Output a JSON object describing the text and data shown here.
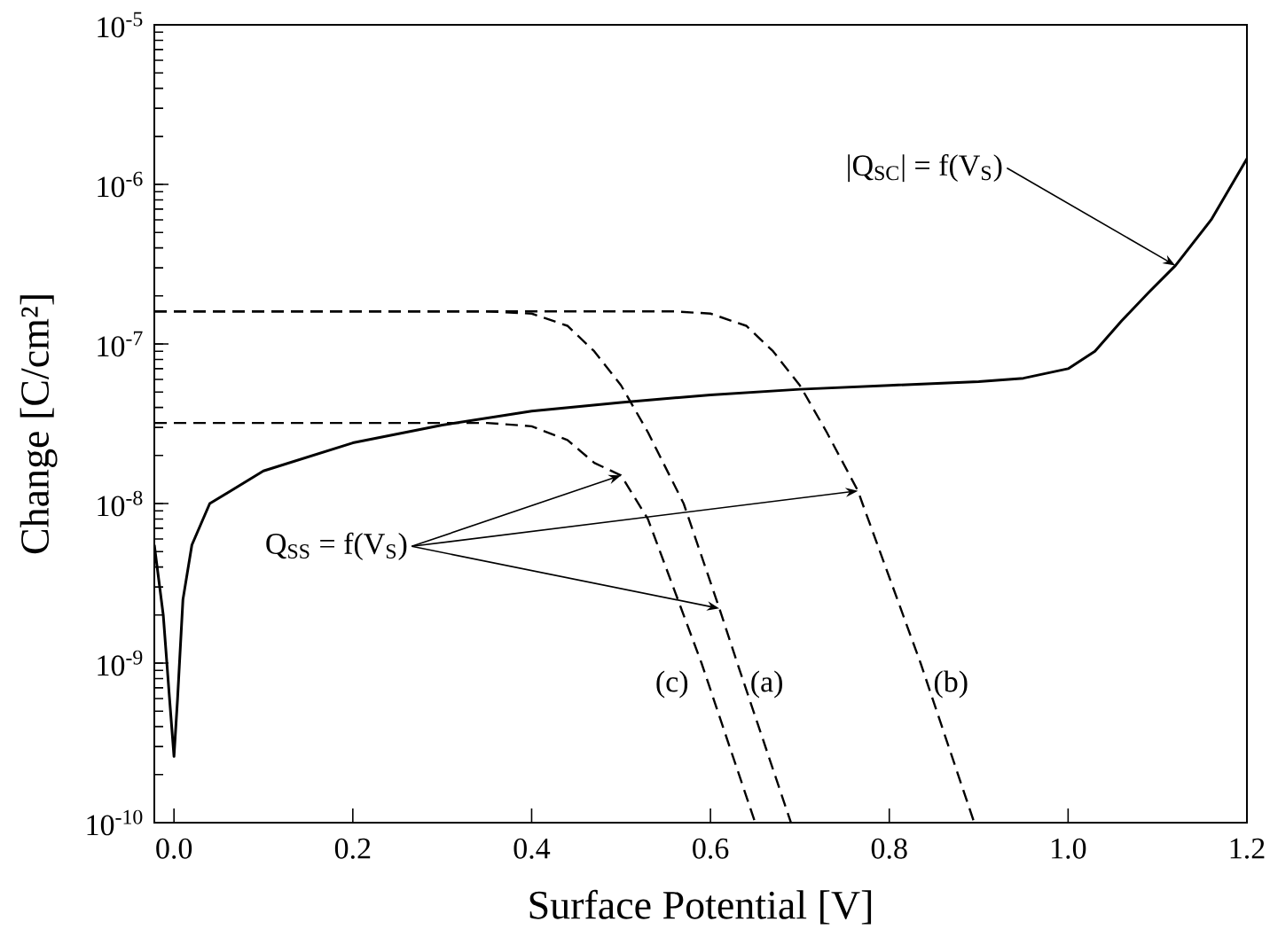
{
  "chart_data": {
    "type": "line",
    "xlabel": "Surface Potential  [V]",
    "ylabel": "Change [C/cm²]",
    "xlim": [
      -0.022,
      1.2
    ],
    "ylim": [
      1e-10,
      1e-05
    ],
    "log": "y",
    "xticks": [
      {
        "value": 0,
        "label": "0.0"
      },
      0.2,
      0.4,
      0.6,
      0.8,
      {
        "value": 1,
        "label": "1.0"
      },
      1.2
    ],
    "yticks": [
      {
        "value": 1e-10,
        "label": "10$^{-10}$"
      },
      {
        "value": 1e-09,
        "label": "10$^{-9}$"
      },
      {
        "value": 1e-08,
        "label": "10$^{-8}$"
      },
      {
        "value": 1e-07,
        "label": "10$^{-7}$"
      },
      {
        "value": 1e-06,
        "label": "10$^{-6}$"
      },
      {
        "value": 1e-05,
        "label": "10$^{-5}$"
      }
    ],
    "grid": false,
    "legend": false,
    "marker": "none",
    "series": [
      {
        "color": "#000000",
        "line_style": "solid",
        "x": [
          -0.022,
          -0.012,
          -0.005,
          0,
          0.004,
          0.01,
          0.02,
          0.04,
          0.1,
          0.2,
          0.3,
          0.4,
          0.5,
          0.6,
          0.7,
          0.8,
          0.9,
          0.95,
          1.0,
          1.03,
          1.06,
          1.09,
          1.12,
          1.16,
          1.2
        ],
        "values": [
          5.5e-09,
          2e-09,
          6e-10,
          2.6e-10,
          6e-10,
          2.5e-09,
          5.5e-09,
          1e-08,
          1.6e-08,
          2.4e-08,
          3.1e-08,
          3.8e-08,
          4.3e-08,
          4.8e-08,
          5.2e-08,
          5.5e-08,
          5.8e-08,
          6.1e-08,
          7e-08,
          9e-08,
          1.4e-07,
          2.1e-07,
          3.1e-07,
          6e-07,
          1.45e-06
        ]
      },
      {
        "name": "(c)",
        "color": "#000000",
        "line_style": "dashed",
        "x": [
          -0.022,
          0.35,
          0.4,
          0.44,
          0.47,
          0.5,
          0.53,
          0.59,
          0.65
        ],
        "values": [
          3.2e-08,
          3.2e-08,
          3.05e-08,
          2.5e-08,
          1.8e-08,
          1.5e-08,
          8e-09,
          1e-09,
          1e-10
        ]
      },
      {
        "name": "(a)",
        "color": "#000000",
        "line_style": "dashed",
        "x": [
          -0.022,
          0.35,
          0.4,
          0.44,
          0.47,
          0.5,
          0.53,
          0.57,
          0.61,
          0.63,
          0.69
        ],
        "values": [
          1.6e-07,
          1.6e-07,
          1.55e-07,
          1.3e-07,
          9e-08,
          5.5e-08,
          2.8e-08,
          1e-08,
          2.2e-09,
          1e-09,
          1e-10
        ]
      },
      {
        "name": "(b)",
        "color": "#000000",
        "line_style": "dashed",
        "x": [
          -0.022,
          0.56,
          0.6,
          0.64,
          0.67,
          0.7,
          0.73,
          0.765,
          0.77,
          0.835,
          0.895
        ],
        "values": [
          1.6e-07,
          1.6e-07,
          1.55e-07,
          1.3e-07,
          9e-08,
          5.5e-08,
          2.8e-08,
          1.2e-08,
          1e-08,
          1e-09,
          1e-10
        ]
      }
    ],
    "annotations": [
      {
        "text": "|Q$_{SC}$| = f(V$_{S}$)",
        "x": 1.12,
        "y": 3.1e-07
      },
      {
        "text": "Q$_{SS}$ = f(V$_{S}$)",
        "x": 0.5,
        "y": 1.5e-08
      }
    ]
  }
}
